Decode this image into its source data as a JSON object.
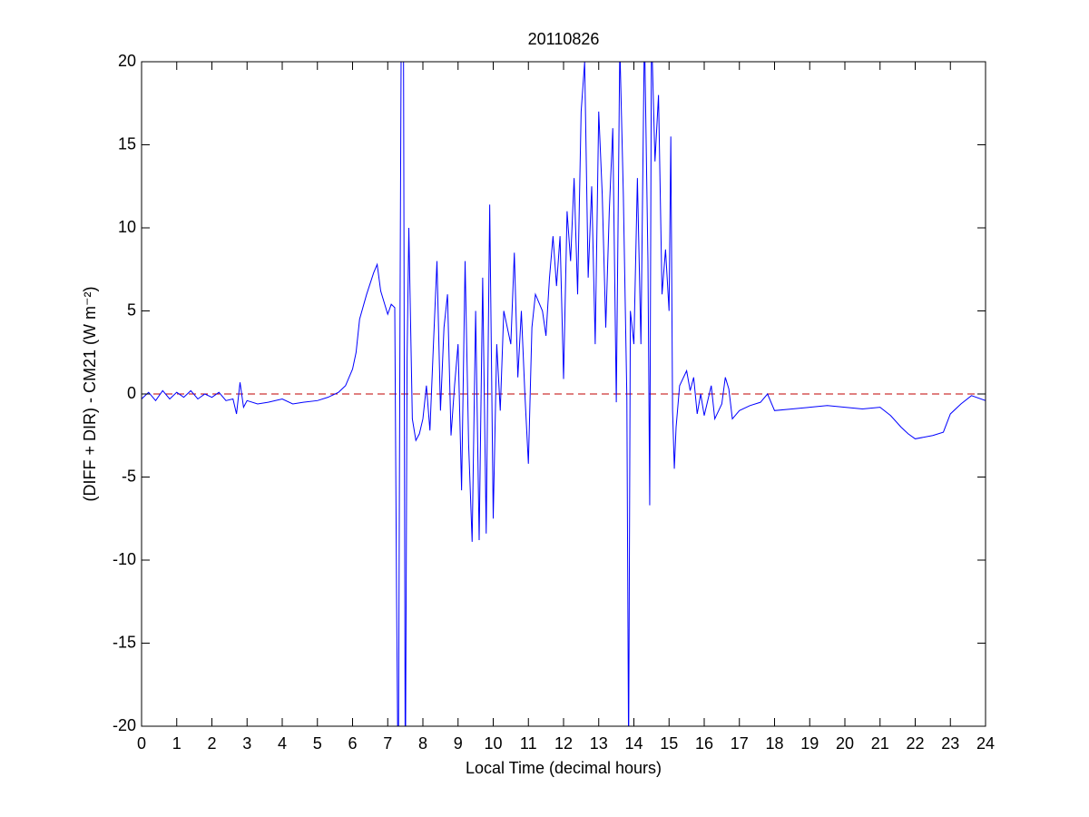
{
  "chart_data": {
    "type": "line",
    "title": "20110826",
    "x_label": "Local Time (decimal hours)",
    "y_label": "(DIFF + DIR) - CM21 (W m⁻²)",
    "x": [
      0,
      0.2,
      0.4,
      0.6,
      0.8,
      1.0,
      1.2,
      1.4,
      1.6,
      1.8,
      2.0,
      2.2,
      2.4,
      2.6,
      2.7,
      2.8,
      2.9,
      3.0,
      3.3,
      3.6,
      4.0,
      4.3,
      4.6,
      5.0,
      5.3,
      5.6,
      5.8,
      6.0,
      6.1,
      6.2,
      6.4,
      6.6,
      6.7,
      6.8,
      6.9,
      7.0,
      7.1,
      7.2,
      7.25,
      7.3,
      7.35,
      7.4,
      7.45,
      7.5,
      7.55,
      7.6,
      7.7,
      7.8,
      7.9,
      8.0,
      8.1,
      8.2,
      8.3,
      8.4,
      8.5,
      8.6,
      8.7,
      8.8,
      8.9,
      9.0,
      9.1,
      9.2,
      9.3,
      9.4,
      9.5,
      9.6,
      9.7,
      9.8,
      9.9,
      10.0,
      10.1,
      10.2,
      10.3,
      10.5,
      10.6,
      10.7,
      10.8,
      10.9,
      11.0,
      11.1,
      11.2,
      11.4,
      11.5,
      11.6,
      11.7,
      11.8,
      11.9,
      12.0,
      12.1,
      12.2,
      12.3,
      12.4,
      12.5,
      12.6,
      12.7,
      12.8,
      12.9,
      13.0,
      13.1,
      13.2,
      13.3,
      13.4,
      13.5,
      13.6,
      13.7,
      13.8,
      13.85,
      13.9,
      14.0,
      14.1,
      14.2,
      14.3,
      14.4,
      14.45,
      14.5,
      14.6,
      14.7,
      14.8,
      14.9,
      15.0,
      15.05,
      15.1,
      15.15,
      15.2,
      15.3,
      15.5,
      15.6,
      15.7,
      15.8,
      15.9,
      16.0,
      16.2,
      16.3,
      16.5,
      16.6,
      16.7,
      16.8,
      17.0,
      17.3,
      17.6,
      17.8,
      18.0,
      18.5,
      19.0,
      19.5,
      20.0,
      20.5,
      21.0,
      21.3,
      21.6,
      21.8,
      22.0,
      22.5,
      22.8,
      23.0,
      23.3,
      23.6,
      24.0
    ],
    "series": [
      {
        "name": "DIFF + DIR - CM21",
        "color": "#0000ff",
        "values": [
          -0.3,
          0.1,
          -0.4,
          0.2,
          -0.3,
          0.1,
          -0.2,
          0.2,
          -0.3,
          0.0,
          -0.2,
          0.1,
          -0.4,
          -0.3,
          -1.2,
          0.7,
          -0.8,
          -0.4,
          -0.6,
          -0.5,
          -0.3,
          -0.6,
          -0.5,
          -0.4,
          -0.2,
          0.1,
          0.5,
          1.5,
          2.5,
          4.5,
          6,
          7.3,
          7.8,
          6.2,
          5.5,
          4.8,
          5.4,
          5.2,
          -11.8,
          -25,
          5,
          30,
          20,
          -25,
          2,
          10,
          -1.5,
          -2.8,
          -2.4,
          -1.5,
          0.5,
          -2.2,
          3,
          8,
          -1,
          4,
          6,
          -2.5,
          0.5,
          3,
          -5.8,
          8,
          -3,
          -8.9,
          5,
          -8.8,
          7,
          -8.4,
          11.4,
          -7.5,
          3,
          -1,
          5,
          3,
          8.5,
          1,
          5,
          0,
          -4.2,
          4,
          6,
          5,
          3.5,
          7,
          9.5,
          6.5,
          9.5,
          0.9,
          11,
          8,
          13,
          6,
          17,
          20,
          7,
          12.5,
          3,
          17,
          12,
          4,
          11,
          16,
          -0.5,
          21,
          12,
          -0.2,
          -22,
          5,
          3,
          13,
          3,
          22,
          8,
          -6.7,
          22,
          14,
          18,
          6,
          8.7,
          5,
          15.5,
          -1,
          -4.5,
          -2,
          0.5,
          1.4,
          0.2,
          1,
          -1.2,
          0,
          -1.3,
          0.5,
          -1.5,
          -0.6,
          1,
          0.3,
          -1.5,
          -1,
          -0.7,
          -0.5,
          0,
          -1,
          -0.9,
          -0.8,
          -0.7,
          -0.8,
          -0.9,
          -0.8,
          -1.3,
          -2.0,
          -2.4,
          -2.7,
          -2.5,
          -2.3,
          -1.2,
          -0.6,
          -0.1,
          -0.4
        ]
      }
    ],
    "reference_line": {
      "value": 0,
      "color": "#c00000",
      "style": "dashed"
    },
    "xlim": [
      0,
      24
    ],
    "xticks": [
      0,
      1,
      2,
      3,
      4,
      5,
      6,
      7,
      8,
      9,
      10,
      11,
      12,
      13,
      14,
      15,
      16,
      17,
      18,
      19,
      20,
      21,
      22,
      23,
      24
    ],
    "ylim": [
      -20,
      20
    ],
    "yticks": [
      -20,
      -15,
      -10,
      -5,
      0,
      5,
      10,
      15,
      20
    ],
    "grid": false
  }
}
